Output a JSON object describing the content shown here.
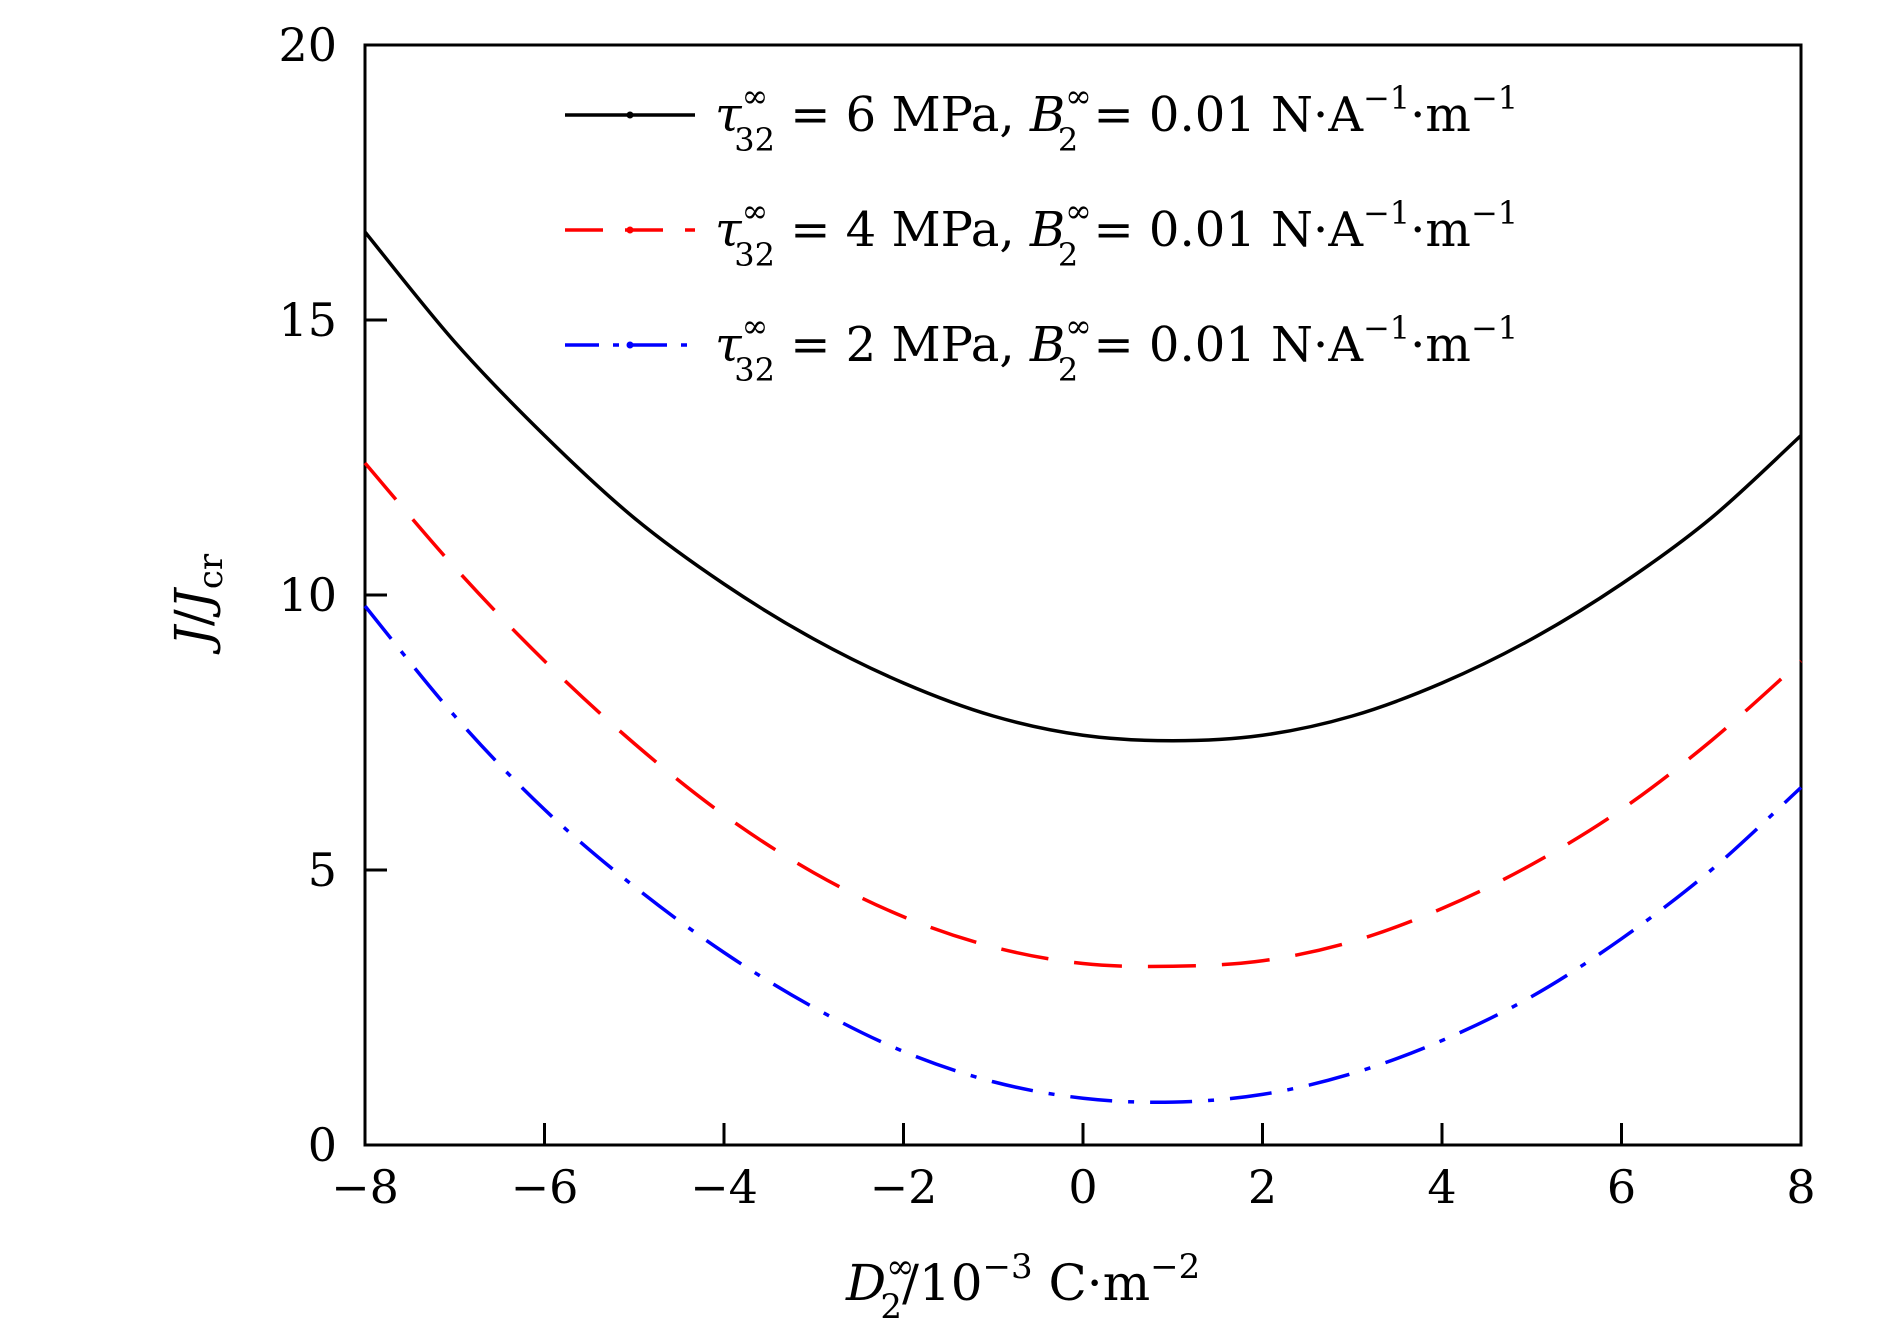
{
  "chart_data": {
    "type": "line",
    "xlabel": {
      "main": "D",
      "sup": "∞",
      "sub": "2",
      "rest": "/10",
      "exp": "−3",
      "unit": " C·m",
      "unit_exp": "−2"
    },
    "ylabel": {
      "main": "J",
      "sep": "/",
      "main2": "J",
      "sub": "cr"
    },
    "xlim": [
      -8,
      8
    ],
    "ylim": [
      0,
      20
    ],
    "xticks": [
      -8,
      -6,
      -4,
      -2,
      0,
      2,
      4,
      6,
      8
    ],
    "xtick_labels": [
      "−8",
      "−6",
      "−4",
      "−2",
      "0",
      "2",
      "4",
      "6",
      "8"
    ],
    "yticks": [
      0,
      5,
      10,
      15,
      20
    ],
    "ytick_labels": [
      "0",
      "5",
      "10",
      "15",
      "20"
    ],
    "grid": false,
    "legend_position": "top-right",
    "series": [
      {
        "name": "τ32∞ = 6 MPa, B2∞ = 0.01 N·A−1·m−1",
        "label": {
          "sym": "τ",
          "sub": "32",
          "sup": "∞",
          "val": " = 6 MPa, ",
          "sym2": "B",
          "sub2": "2",
          "sup2": "∞",
          "val2": " = 0.01 N·A",
          "e1": "−1",
          "mid": "·m",
          "e2": "−1"
        },
        "color": "#000000",
        "style": "solid",
        "x": [
          -8,
          -7,
          -6,
          -5,
          -4,
          -3,
          -2,
          -1,
          0,
          1,
          2,
          3,
          4,
          5,
          6,
          7,
          8
        ],
        "y": [
          16.6,
          14.6,
          12.9,
          11.4,
          10.2,
          9.2,
          8.4,
          7.8,
          7.45,
          7.35,
          7.45,
          7.8,
          8.4,
          9.2,
          10.2,
          11.4,
          12.9
        ]
      },
      {
        "name": "τ32∞ = 4 MPa, B2∞ = 0.01 N·A−1·m−1",
        "label": {
          "sym": "τ",
          "sub": "32",
          "sup": "∞",
          "val": " = 4 MPa, ",
          "sym2": "B",
          "sub2": "2",
          "sup2": "∞",
          "val2": " = 0.01 N·A",
          "e1": "−1",
          "mid": "·m",
          "e2": "−1"
        },
        "color": "#ff0000",
        "style": "dashed",
        "x": [
          -8,
          -7,
          -6,
          -5,
          -4,
          -3,
          -2,
          -1,
          0,
          1,
          2,
          3,
          4,
          5,
          6,
          7,
          8
        ],
        "y": [
          12.4,
          10.5,
          8.8,
          7.3,
          6.0,
          4.95,
          4.15,
          3.6,
          3.3,
          3.25,
          3.35,
          3.7,
          4.3,
          5.1,
          6.1,
          7.35,
          8.8
        ]
      },
      {
        "name": "τ32∞ = 2 MPa, B2∞ = 0.01 N·A−1·m−1",
        "label": {
          "sym": "τ",
          "sub": "32",
          "sup": "∞",
          "val": " = 2 MPa, ",
          "sym2": "B",
          "sub2": "2",
          "sup2": "∞",
          "val2": " = 0.01 N·A",
          "e1": "−1",
          "mid": "·m",
          "e2": "−1"
        },
        "color": "#0000ff",
        "style": "dashdot",
        "x": [
          -8,
          -7,
          -6,
          -5,
          -4,
          -3,
          -2,
          -1,
          0,
          1,
          2,
          3,
          4,
          5,
          6,
          7,
          8
        ],
        "y": [
          9.8,
          7.8,
          6.1,
          4.7,
          3.5,
          2.5,
          1.7,
          1.15,
          0.85,
          0.78,
          0.92,
          1.3,
          1.9,
          2.7,
          3.75,
          5.0,
          6.5
        ]
      }
    ]
  }
}
